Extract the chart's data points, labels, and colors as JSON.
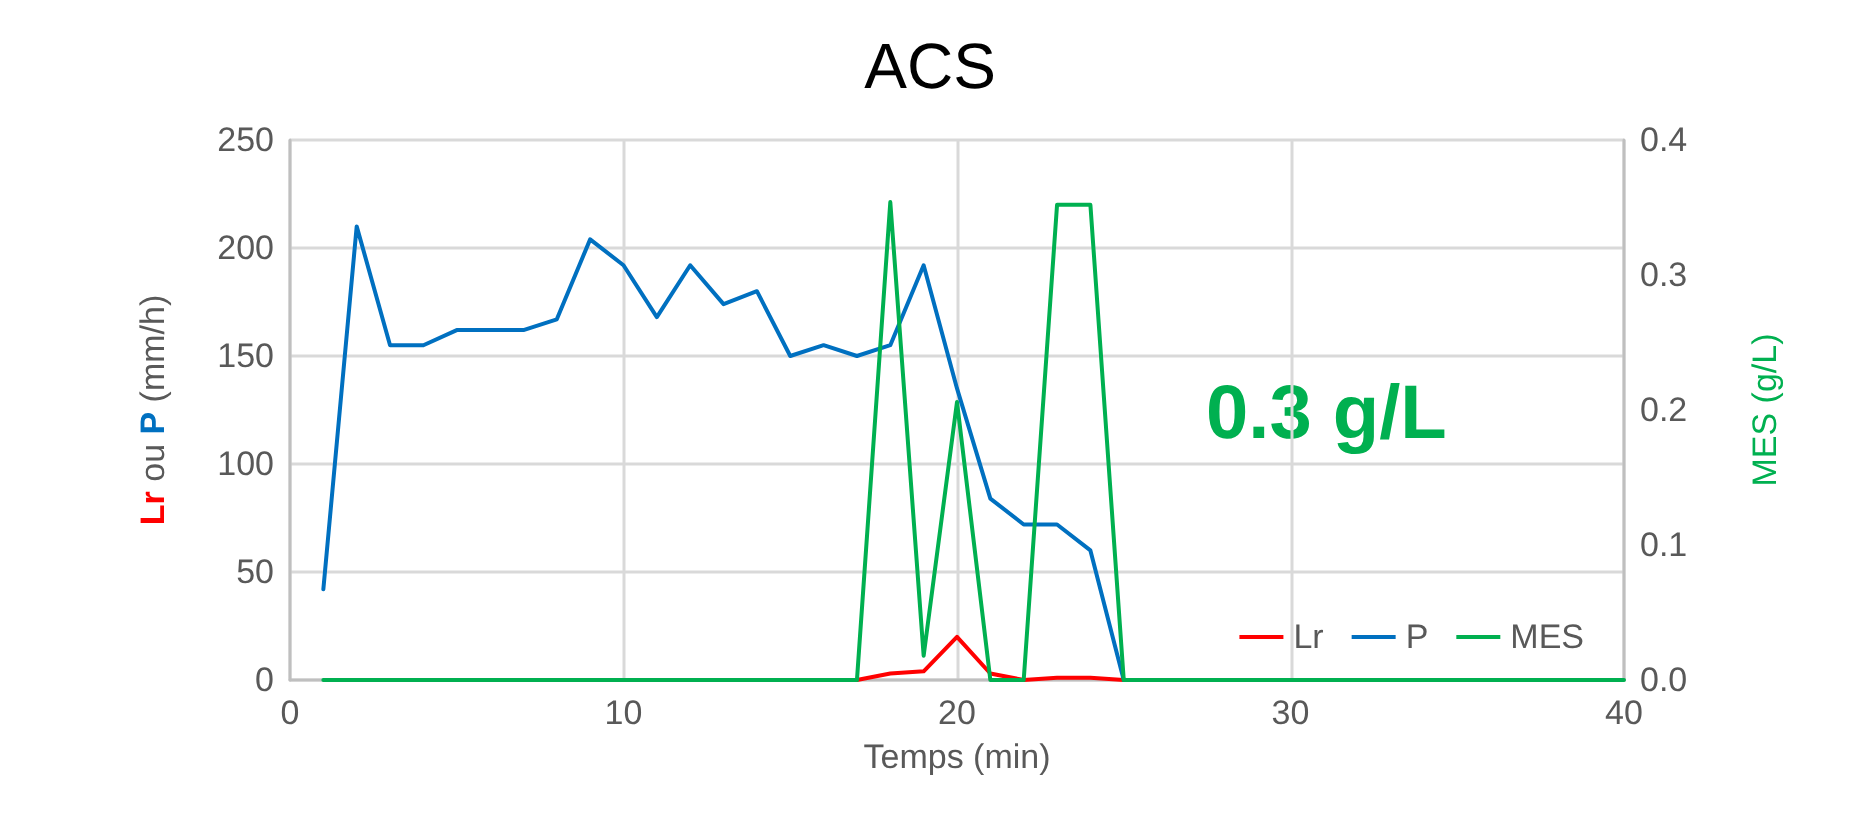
{
  "chart_data": {
    "type": "line",
    "title": "ACS",
    "xlabel": "Temps (min)",
    "ylabel": "Lr ou P (mm/h)",
    "y2label": "MES (g/L)",
    "annotations": [
      "0.3 g/L"
    ],
    "series": [
      {
        "name": "Lr",
        "color": "#ff0000",
        "x": [
          17,
          18,
          19,
          20,
          21,
          22,
          23,
          24,
          25
        ],
        "values": [
          0,
          3,
          4,
          20,
          3,
          0,
          1,
          1,
          0
        ]
      },
      {
        "name": "P",
        "color": "#0070c0",
        "x": [
          1,
          2,
          3,
          4,
          5,
          6,
          7,
          8,
          9,
          10,
          11,
          12,
          13,
          14,
          15,
          16,
          17,
          18,
          19,
          20,
          21,
          22,
          23,
          24,
          25
        ],
        "values": [
          42,
          210,
          155,
          155,
          162,
          162,
          162,
          167,
          204,
          192,
          168,
          192,
          174,
          180,
          150,
          155,
          150,
          155,
          192,
          135,
          84,
          72,
          72,
          60,
          0
        ]
      },
      {
        "name": "MES",
        "color": "#00b050",
        "axis": "y2",
        "x": [
          1,
          2,
          3,
          4,
          5,
          6,
          7,
          8,
          9,
          10,
          11,
          12,
          13,
          14,
          15,
          16,
          17,
          18,
          19,
          20,
          21,
          22,
          23,
          24,
          25,
          26,
          27,
          28,
          29,
          30,
          31,
          32,
          33,
          34,
          35,
          36,
          37,
          38,
          39,
          40
        ],
        "values": [
          0,
          0,
          0,
          0,
          0,
          0,
          0,
          0,
          0,
          0,
          0,
          0,
          0,
          0,
          0,
          0,
          0,
          0.354,
          0.018,
          0.206,
          0,
          0,
          0.352,
          0.352,
          0,
          0,
          0,
          0,
          0,
          0,
          0,
          0,
          0,
          0,
          0,
          0,
          0,
          0,
          0,
          0
        ]
      }
    ],
    "xlim": [
      0,
      40
    ],
    "xticks": [
      0,
      10,
      20,
      30,
      40
    ],
    "ylim": [
      0,
      250
    ],
    "yticks": [
      0,
      50,
      100,
      150,
      200,
      250
    ],
    "y2lim": [
      0,
      0.4
    ],
    "y2ticks": [
      {
        "value": 0,
        "label": "0.0"
      },
      {
        "value": 0.1,
        "label": "0.1"
      },
      {
        "value": 0.2,
        "label": "0.2"
      },
      {
        "value": 0.3,
        "label": "0.3"
      },
      {
        "value": 0.4,
        "label": "0.4"
      }
    ],
    "grid": true,
    "legend": "bottom right",
    "marker": "none",
    "line_style": "solid"
  }
}
